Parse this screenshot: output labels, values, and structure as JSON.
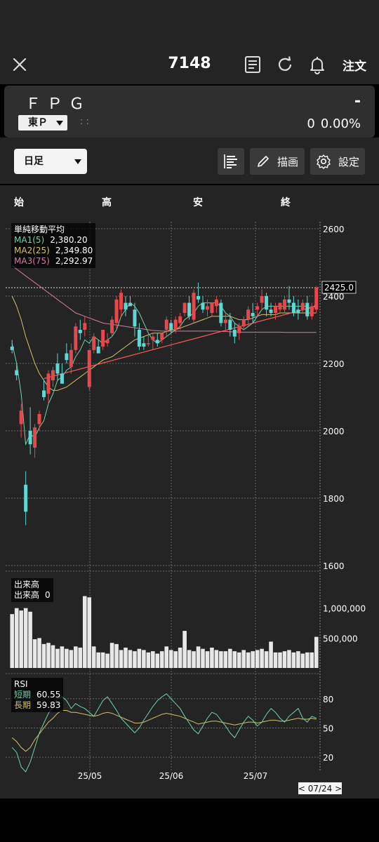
{
  "header": {
    "title": "7148",
    "order_label": "注文"
  },
  "quote": {
    "name": "ＦＰＧ",
    "price": "-",
    "market": "東Ｐ",
    "time": ":  :",
    "change": "0",
    "change_pct": "0.00%"
  },
  "toolbar": {
    "period": "日足",
    "draw_label": "描画",
    "settings_label": "設定"
  },
  "ohlc_labels": [
    "始",
    "高",
    "安",
    "終"
  ],
  "colors": {
    "up": "#e8474c",
    "down": "#5fd7d3",
    "ma1": "#6fd3a8",
    "ma2": "#d4c26e",
    "ma3": "#d57aa3",
    "trend": "#ff5a5a",
    "rsi_short": "#6fd3a8",
    "rsi_long": "#d4c26e"
  },
  "icons": {
    "close": "close-icon",
    "board": "board-list-icon",
    "refresh": "refresh-icon",
    "alert": "bell-icon",
    "orderbook": "order-book-icon",
    "draw": "pencil-icon",
    "settings": "gear-icon"
  },
  "chart_data": {
    "type": "candlestick",
    "price_axis": {
      "min": 1600,
      "max": 2600,
      "ticks": [
        "2600",
        "2400",
        "2200",
        "2000",
        "1800",
        "1600"
      ]
    },
    "date_labels": [
      "25/05",
      "25/06",
      "25/07"
    ],
    "current_price_label": "2425.0",
    "date_cursor_label": "< 07/24 >",
    "ma_legend": {
      "title": "単純移動平均",
      "items": [
        {
          "name": "MA1(5)",
          "value": "2,380.20"
        },
        {
          "name": "MA2(25)",
          "value": "2,349.80"
        },
        {
          "name": "MA3(75)",
          "value": "2,292.97"
        }
      ]
    },
    "candles": [
      [
        2250,
        2270,
        2230,
        2240
      ],
      [
        2180,
        2200,
        2150,
        2165
      ],
      [
        2020,
        2080,
        1980,
        2060
      ],
      [
        1840,
        1880,
        1720,
        1760
      ],
      [
        2000,
        2070,
        1930,
        1960
      ],
      [
        1950,
        2020,
        1920,
        2010
      ],
      [
        2020,
        2060,
        2000,
        2050
      ],
      [
        2120,
        2150,
        2090,
        2100
      ],
      [
        2110,
        2180,
        2080,
        2170
      ],
      [
        2150,
        2190,
        2130,
        2180
      ],
      [
        2200,
        2230,
        2150,
        2170
      ],
      [
        2170,
        2200,
        2140,
        2140
      ],
      [
        2230,
        2260,
        2200,
        2210
      ],
      [
        2190,
        2260,
        2170,
        2240
      ],
      [
        2240,
        2320,
        2230,
        2310
      ],
      [
        2300,
        2330,
        2270,
        2290
      ],
      [
        2300,
        2340,
        2280,
        2320
      ],
      [
        2130,
        2240,
        2120,
        2240
      ],
      [
        2240,
        2290,
        2230,
        2280
      ],
      [
        2250,
        2270,
        2230,
        2230
      ],
      [
        2250,
        2300,
        2240,
        2300
      ],
      [
        2260,
        2290,
        2250,
        2270
      ],
      [
        2290,
        2340,
        2280,
        2330
      ],
      [
        2320,
        2400,
        2300,
        2390
      ],
      [
        2360,
        2420,
        2340,
        2410
      ],
      [
        2380,
        2400,
        2340,
        2360
      ],
      [
        2380,
        2400,
        2370,
        2370
      ],
      [
        2360,
        2380,
        2280,
        2310
      ],
      [
        2300,
        2320,
        2240,
        2250
      ],
      [
        2260,
        2280,
        2240,
        2250
      ],
      [
        2260,
        2290,
        2250,
        2260
      ],
      [
        2270,
        2290,
        2240,
        2280
      ],
      [
        2270,
        2290,
        2250,
        2260
      ],
      [
        2270,
        2290,
        2260,
        2290
      ],
      [
        2300,
        2340,
        2280,
        2330
      ],
      [
        2320,
        2330,
        2290,
        2300
      ],
      [
        2300,
        2340,
        2290,
        2330
      ],
      [
        2320,
        2350,
        2300,
        2340
      ],
      [
        2350,
        2380,
        2340,
        2380
      ],
      [
        2380,
        2400,
        2330,
        2340
      ],
      [
        2330,
        2420,
        2320,
        2410
      ],
      [
        2400,
        2440,
        2380,
        2390
      ],
      [
        2380,
        2400,
        2350,
        2360
      ],
      [
        2360,
        2390,
        2340,
        2370
      ],
      [
        2350,
        2380,
        2340,
        2380
      ],
      [
        2370,
        2400,
        2350,
        2390
      ],
      [
        2380,
        2390,
        2310,
        2320
      ],
      [
        2320,
        2350,
        2300,
        2330
      ],
      [
        2330,
        2350,
        2280,
        2300
      ],
      [
        2300,
        2320,
        2260,
        2280
      ],
      [
        2290,
        2320,
        2270,
        2310
      ],
      [
        2310,
        2340,
        2300,
        2330
      ],
      [
        2330,
        2370,
        2310,
        2360
      ],
      [
        2350,
        2380,
        2320,
        2340
      ],
      [
        2360,
        2380,
        2340,
        2370
      ],
      [
        2380,
        2420,
        2360,
        2400
      ],
      [
        2400,
        2410,
        2340,
        2360
      ],
      [
        2360,
        2380,
        2340,
        2350
      ],
      [
        2350,
        2380,
        2330,
        2370
      ],
      [
        2360,
        2380,
        2350,
        2380
      ],
      [
        2360,
        2400,
        2350,
        2390
      ],
      [
        2390,
        2430,
        2360,
        2380
      ],
      [
        2380,
        2400,
        2340,
        2350
      ],
      [
        2360,
        2390,
        2330,
        2350
      ],
      [
        2360,
        2390,
        2350,
        2380
      ],
      [
        2380,
        2400,
        2330,
        2340
      ],
      [
        2340,
        2380,
        2330,
        2370
      ],
      [
        2360,
        2430,
        2350,
        2425
      ]
    ],
    "ma1": [
      2260,
      2200,
      2110,
      1960,
      1990,
      1980,
      2010,
      2030,
      2080,
      2110,
      2150,
      2160,
      2180,
      2190,
      2220,
      2240,
      2270,
      2260,
      2280,
      2270,
      2260,
      2270,
      2280,
      2300,
      2340,
      2360,
      2380,
      2370,
      2350,
      2320,
      2290,
      2270,
      2260,
      2270,
      2280,
      2290,
      2300,
      2310,
      2330,
      2340,
      2350,
      2370,
      2380,
      2380,
      2380,
      2380,
      2370,
      2350,
      2340,
      2320,
      2310,
      2300,
      2310,
      2320,
      2340,
      2360,
      2370,
      2370,
      2370,
      2370,
      2370,
      2370,
      2370,
      2370,
      2370,
      2370,
      2360,
      2380
    ],
    "ma2": [
      2400,
      2370,
      2330,
      2280,
      2240,
      2200,
      2170,
      2150,
      2130,
      2120,
      2120,
      2125,
      2130,
      2140,
      2150,
      2160,
      2170,
      2180,
      2190,
      2200,
      2210,
      2215,
      2220,
      2230,
      2240,
      2250,
      2260,
      2270,
      2275,
      2280,
      2285,
      2290,
      2290,
      2290,
      2295,
      2300,
      2300,
      2305,
      2310,
      2315,
      2320,
      2325,
      2330,
      2335,
      2340,
      2340,
      2340,
      2340,
      2340,
      2335,
      2330,
      2330,
      2330,
      2335,
      2340,
      2345,
      2345,
      2345,
      2345,
      2350,
      2350,
      2350,
      2350,
      2350,
      2350,
      2350,
      2350,
      2350
    ],
    "ma3": [
      2490,
      2480,
      2470,
      2460,
      2450,
      2440,
      2430,
      2420,
      2410,
      2400,
      2390,
      2380,
      2370,
      2360,
      2350,
      2345,
      2340,
      2335,
      2330,
      2325,
      2320,
      2318,
      2316,
      2314,
      2312,
      2310,
      2308,
      2306,
      2304,
      2302,
      2300,
      2298,
      2297,
      2296,
      2296,
      2296,
      2296,
      2296,
      2296,
      2296,
      2296,
      2296,
      2296,
      2296,
      2296,
      2296,
      2295,
      2295,
      2294,
      2294,
      2293,
      2293,
      2293,
      2293,
      2293,
      2293,
      2293,
      2293,
      2293,
      2293,
      2292,
      2292,
      2292,
      2292,
      2292,
      2292,
      2292,
      2292
    ],
    "trendline": {
      "from": [
        7,
        2155
      ],
      "to": [
        67,
        2370
      ]
    },
    "volume": {
      "title": "出来高",
      "label": "出来高",
      "value": "0",
      "max": 1500000,
      "ticks": [
        "1,000,000",
        "500,000"
      ],
      "values": [
        900000,
        1000000,
        960000,
        1000000,
        940000,
        480000,
        500000,
        400000,
        420000,
        380000,
        320000,
        360000,
        320000,
        300000,
        360000,
        340000,
        1200000,
        1180000,
        360000,
        260000,
        260000,
        240000,
        420000,
        400000,
        300000,
        340000,
        300000,
        280000,
        320000,
        300000,
        260000,
        280000,
        240000,
        280000,
        360000,
        300000,
        280000,
        340000,
        620000,
        300000,
        280000,
        360000,
        320000,
        280000,
        340000,
        300000,
        280000,
        280000,
        320000,
        280000,
        260000,
        300000,
        260000,
        280000,
        300000,
        320000,
        280000,
        440000,
        260000,
        260000,
        280000,
        300000,
        260000,
        280000,
        240000,
        260000,
        260000,
        520000
      ]
    },
    "rsi": {
      "title": "RSI",
      "short_label": "短期",
      "short_value": "60.55",
      "long_label": "長期",
      "long_value": "59.83",
      "ticks": [
        "80",
        "50",
        "20"
      ],
      "short": [
        30,
        25,
        10,
        5,
        15,
        30,
        45,
        55,
        65,
        72,
        80,
        82,
        78,
        70,
        75,
        72,
        70,
        66,
        62,
        70,
        78,
        82,
        75,
        68,
        60,
        55,
        50,
        45,
        50,
        58,
        65,
        72,
        78,
        82,
        85,
        80,
        75,
        70,
        62,
        55,
        48,
        44,
        52,
        60,
        66,
        64,
        58,
        52,
        45,
        40,
        48,
        56,
        62,
        58,
        52,
        56,
        64,
        70,
        66,
        60,
        56,
        62,
        66,
        70,
        60,
        56,
        62,
        60
      ],
      "long": [
        40,
        36,
        30,
        26,
        30,
        38,
        44,
        50,
        56,
        60,
        65,
        68,
        68,
        66,
        66,
        65,
        64,
        63,
        62,
        63,
        65,
        66,
        65,
        63,
        61,
        59,
        57,
        55,
        55,
        56,
        58,
        60,
        62,
        64,
        65,
        64,
        63,
        62,
        60,
        58,
        56,
        54,
        55,
        56,
        57,
        57,
        56,
        55,
        54,
        53,
        54,
        55,
        56,
        56,
        55,
        56,
        57,
        58,
        58,
        57,
        57,
        58,
        59,
        60,
        59,
        59,
        60,
        59
      ]
    }
  }
}
